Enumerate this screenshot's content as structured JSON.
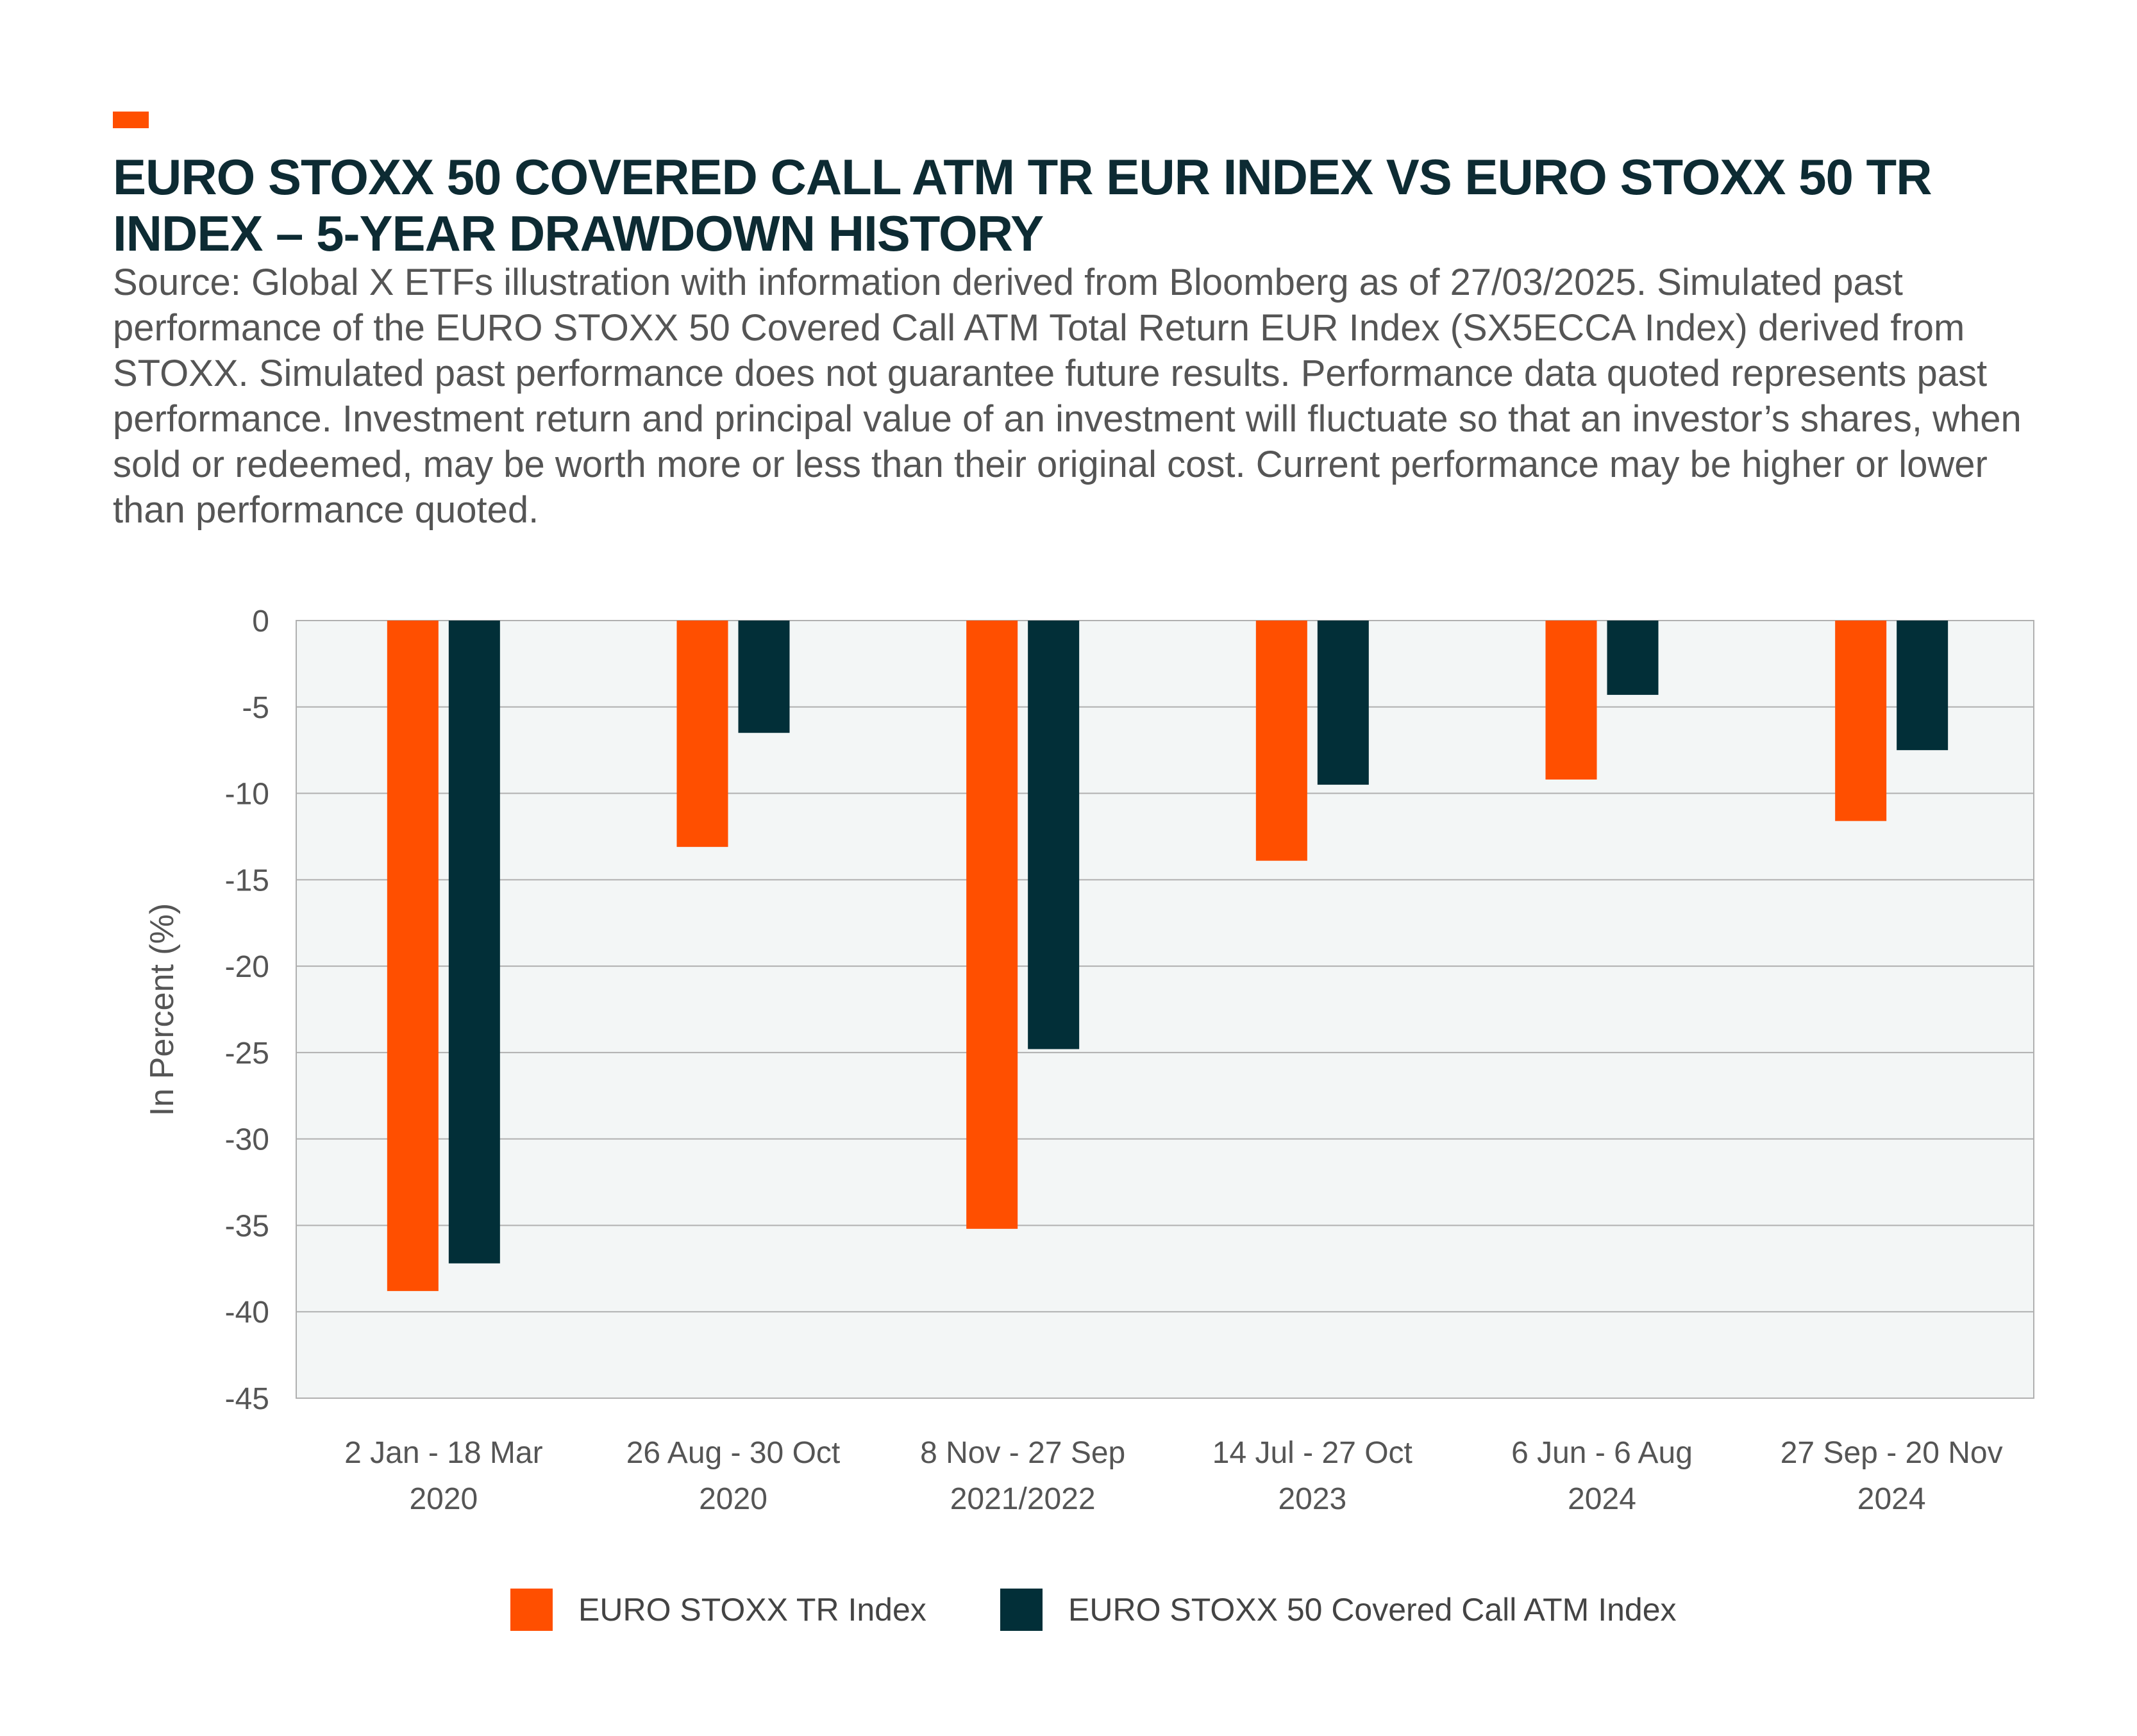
{
  "header": {
    "title": "EURO STOXX 50 COVERED CALL ATM TR EUR INDEX VS EURO STOXX 50 TR INDEX – 5-YEAR DRAWDOWN HISTORY",
    "source_text": "Source: Global X ETFs illustration with information derived from Bloomberg as of 27/03/2025. Simulated past performance of the EURO STOXX 50 Covered Call ATM Total Return EUR Index (SX5ECCA Index) derived from STOXX. Simulated past performance does not guarantee future results. Performance data quoted represents past performance. Investment return and principal value of an investment will fluctuate so that an investor’s shares, when sold or redeemed, may be worth more or less than their original cost. Current performance may be higher or lower than performance quoted."
  },
  "colors": {
    "accent": "#ff4f00",
    "series_1": "#ff4f00",
    "series_2": "#022f38",
    "plot_background": "#f3f6f6",
    "gridline": "#b0b0b0",
    "title": "#0d2b33"
  },
  "chart_data": {
    "type": "bar",
    "title": "",
    "xlabel": "",
    "ylabel": "In Percent (%)",
    "ylim": [
      -45,
      0
    ],
    "yticks": [
      0,
      -5,
      -10,
      -15,
      -20,
      -25,
      -30,
      -35,
      -40,
      -45
    ],
    "grid": true,
    "legend_position": "bottom",
    "categories": [
      [
        "2 Jan - 18 Mar",
        "2020"
      ],
      [
        "26 Aug - 30 Oct",
        "2020"
      ],
      [
        "8 Nov - 27 Sep",
        "2021/2022"
      ],
      [
        "14 Jul - 27 Oct",
        "2023"
      ],
      [
        "6 Jun - 6 Aug",
        "2024"
      ],
      [
        "27 Sep - 20 Nov",
        "2024"
      ]
    ],
    "series": [
      {
        "name": "EURO STOXX TR Index",
        "values": [
          -38.8,
          -13.1,
          -35.2,
          -13.9,
          -9.2,
          -11.6
        ]
      },
      {
        "name": "EURO STOXX 50 Covered Call ATM Index",
        "values": [
          -37.2,
          -6.5,
          -24.8,
          -9.5,
          -4.3,
          -7.5
        ]
      }
    ]
  }
}
